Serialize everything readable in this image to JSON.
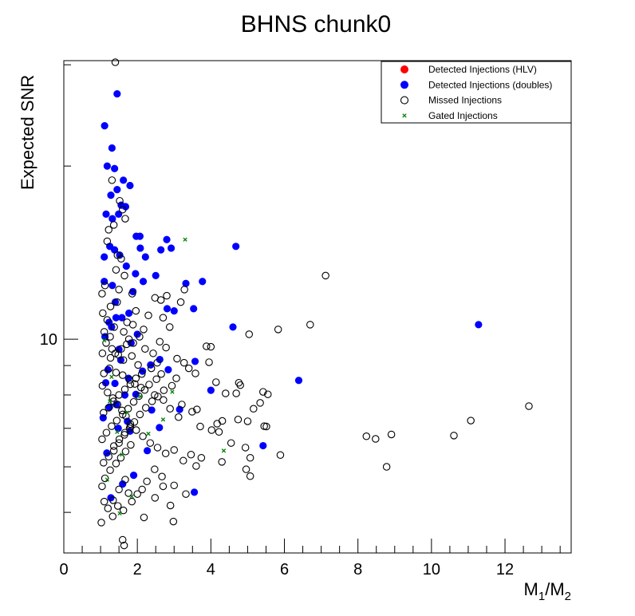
{
  "chart_data": {
    "type": "scatter",
    "title": "BHNS chunk0",
    "xlabel_main": "M",
    "xlabel_sub1": "1",
    "xlabel_sep": "/M",
    "xlabel_sub2": "2",
    "ylabel": "Expected SNR",
    "xlim": [
      0,
      13.8
    ],
    "ylim": [
      4.25,
      30.5
    ],
    "yscale": "log",
    "x_ticks": [
      "0",
      "2",
      "4",
      "6",
      "8",
      "10",
      "12"
    ],
    "y_ticks": [
      "10"
    ],
    "legend_position": "top-right",
    "legend": [
      {
        "label": "Detected Injections (HLV)",
        "marker": "filled-circle",
        "color": "#ff0000"
      },
      {
        "label": "Detected Injections (doubles)",
        "marker": "filled-circle",
        "color": "#0000ff"
      },
      {
        "label": "Missed Injections",
        "marker": "open-circle",
        "color": "#000000"
      },
      {
        "label": "Gated Injections",
        "marker": "x",
        "color": "#008000"
      }
    ],
    "series": [
      {
        "name": "Detected Injections (doubles)",
        "color": "#0000ff",
        "points": [
          [
            1.11,
            23.5
          ],
          [
            1.45,
            26.7
          ],
          [
            1.18,
            20.0
          ],
          [
            1.31,
            21.5
          ],
          [
            1.38,
            19.8
          ],
          [
            1.62,
            18.9
          ],
          [
            1.45,
            18.2
          ],
          [
            1.28,
            17.8
          ],
          [
            1.68,
            17.0
          ],
          [
            1.8,
            18.5
          ],
          [
            1.56,
            17.1
          ],
          [
            1.32,
            16.2
          ],
          [
            1.49,
            16.5
          ],
          [
            1.15,
            16.5
          ],
          [
            1.97,
            15.1
          ],
          [
            2.07,
            15.1
          ],
          [
            1.38,
            14.3
          ],
          [
            1.52,
            14.0
          ],
          [
            1.25,
            14.5
          ],
          [
            1.1,
            13.9
          ],
          [
            1.7,
            13.4
          ],
          [
            1.95,
            13.0
          ],
          [
            1.88,
            12.1
          ],
          [
            1.1,
            12.6
          ],
          [
            1.32,
            12.4
          ],
          [
            1.4,
            11.6
          ],
          [
            1.77,
            11.1
          ],
          [
            1.42,
            10.9
          ],
          [
            1.3,
            10.5
          ],
          [
            1.23,
            10.7
          ],
          [
            2.08,
            14.4
          ],
          [
            2.22,
            13.9
          ],
          [
            2.64,
            14.3
          ],
          [
            2.8,
            14.9
          ],
          [
            2.92,
            14.4
          ],
          [
            2.16,
            12.6
          ],
          [
            2.5,
            12.9
          ],
          [
            3.32,
            12.5
          ],
          [
            3.77,
            12.6
          ],
          [
            2.81,
            11.3
          ],
          [
            3.0,
            11.2
          ],
          [
            4.68,
            14.5
          ],
          [
            3.53,
            11.3
          ],
          [
            4.6,
            10.5
          ],
          [
            2.0,
            10.2
          ],
          [
            1.83,
            9.85
          ],
          [
            1.5,
            9.6
          ],
          [
            1.55,
            9.2
          ],
          [
            2.36,
            9.02
          ],
          [
            2.61,
            9.22
          ],
          [
            3.57,
            9.15
          ],
          [
            2.84,
            8.85
          ],
          [
            1.76,
            8.55
          ],
          [
            1.2,
            8.85
          ],
          [
            1.39,
            8.38
          ],
          [
            1.66,
            8.0
          ],
          [
            1.96,
            8.02
          ],
          [
            1.24,
            7.62
          ],
          [
            1.48,
            7.0
          ],
          [
            1.8,
            6.92
          ],
          [
            2.39,
            7.53
          ],
          [
            2.6,
            7.02
          ],
          [
            3.15,
            7.55
          ],
          [
            4.0,
            8.15
          ],
          [
            6.39,
            8.48
          ],
          [
            11.28,
            10.6
          ],
          [
            5.42,
            6.53
          ],
          [
            3.55,
            5.42
          ],
          [
            1.17,
            6.34
          ],
          [
            1.9,
            5.8
          ],
          [
            1.28,
            5.3
          ],
          [
            1.6,
            5.6
          ],
          [
            1.07,
            7.3
          ],
          [
            1.43,
            7.7
          ],
          [
            1.12,
            10.1
          ],
          [
            1.58,
            10.9
          ],
          [
            2.14,
            8.8
          ],
          [
            1.14,
            8.4
          ],
          [
            1.73,
            7.2
          ],
          [
            2.27,
            6.4
          ]
        ]
      },
      {
        "name": "Missed Injections",
        "color": "#000000",
        "points": [
          [
            1.4,
            30.3
          ],
          [
            1.31,
            18.9
          ],
          [
            1.52,
            17.4
          ],
          [
            1.6,
            16.8
          ],
          [
            1.67,
            16.2
          ],
          [
            1.36,
            15.8
          ],
          [
            1.22,
            15.5
          ],
          [
            1.18,
            14.8
          ],
          [
            1.46,
            14.0
          ],
          [
            1.56,
            13.8
          ],
          [
            1.42,
            13.2
          ],
          [
            1.65,
            12.9
          ],
          [
            1.5,
            12.2
          ],
          [
            1.86,
            12.0
          ],
          [
            2.48,
            11.8
          ],
          [
            2.64,
            11.7
          ],
          [
            2.8,
            11.9
          ],
          [
            2.3,
            11.0
          ],
          [
            2.7,
            10.9
          ],
          [
            3.18,
            11.6
          ],
          [
            3.28,
            12.2
          ],
          [
            1.96,
            11.2
          ],
          [
            1.72,
            10.7
          ],
          [
            2.17,
            10.4
          ],
          [
            2.06,
            10.1
          ],
          [
            2.61,
            9.9
          ],
          [
            2.88,
            10.5
          ],
          [
            1.1,
            10.3
          ],
          [
            1.26,
            10.1
          ],
          [
            1.15,
            9.85
          ],
          [
            1.05,
            9.45
          ],
          [
            1.31,
            9.62
          ],
          [
            1.48,
            9.4
          ],
          [
            1.62,
            9.2
          ],
          [
            1.85,
            9.35
          ],
          [
            2.21,
            9.62
          ],
          [
            2.43,
            9.45
          ],
          [
            2.78,
            9.67
          ],
          [
            3.08,
            9.25
          ],
          [
            3.27,
            9.1
          ],
          [
            3.4,
            8.9
          ],
          [
            3.58,
            8.72
          ],
          [
            3.88,
            9.72
          ],
          [
            4.0,
            9.7
          ],
          [
            3.95,
            9.12
          ],
          [
            4.14,
            8.42
          ],
          [
            4.4,
            8.05
          ],
          [
            4.76,
            8.4
          ],
          [
            4.8,
            8.32
          ],
          [
            4.69,
            8.05
          ],
          [
            5.04,
            10.2
          ],
          [
            5.83,
            10.4
          ],
          [
            6.7,
            10.6
          ],
          [
            7.12,
            12.9
          ],
          [
            5.34,
            7.75
          ],
          [
            5.42,
            8.1
          ],
          [
            5.55,
            8.02
          ],
          [
            5.16,
            7.57
          ],
          [
            5.0,
            7.2
          ],
          [
            5.45,
            7.06
          ],
          [
            5.51,
            7.05
          ],
          [
            4.74,
            7.25
          ],
          [
            4.31,
            7.21
          ],
          [
            4.17,
            7.13
          ],
          [
            4.22,
            6.9
          ],
          [
            4.02,
            6.95
          ],
          [
            3.71,
            7.05
          ],
          [
            3.49,
            7.48
          ],
          [
            3.62,
            7.55
          ],
          [
            3.21,
            7.7
          ],
          [
            3.12,
            7.32
          ],
          [
            2.89,
            7.57
          ],
          [
            2.71,
            7.84
          ],
          [
            2.47,
            8.0
          ],
          [
            2.1,
            8.24
          ],
          [
            1.93,
            8.36
          ],
          [
            1.79,
            8.5
          ],
          [
            1.6,
            8.66
          ],
          [
            1.42,
            8.75
          ],
          [
            1.24,
            8.9
          ],
          [
            1.09,
            8.72
          ],
          [
            1.05,
            8.3
          ],
          [
            1.19,
            8.08
          ],
          [
            1.33,
            7.9
          ],
          [
            1.46,
            7.7
          ],
          [
            1.58,
            7.52
          ],
          [
            1.69,
            7.35
          ],
          [
            1.81,
            7.12
          ],
          [
            1.97,
            6.95
          ],
          [
            2.15,
            6.78
          ],
          [
            2.35,
            6.6
          ],
          [
            2.55,
            6.48
          ],
          [
            2.77,
            6.33
          ],
          [
            3.0,
            6.42
          ],
          [
            3.25,
            6.15
          ],
          [
            3.46,
            6.3
          ],
          [
            3.6,
            6.02
          ],
          [
            3.74,
            6.22
          ],
          [
            4.3,
            6.12
          ],
          [
            4.55,
            6.6
          ],
          [
            4.94,
            6.48
          ],
          [
            5.07,
            6.22
          ],
          [
            5.89,
            6.29
          ],
          [
            8.23,
            6.78
          ],
          [
            8.48,
            6.71
          ],
          [
            8.91,
            6.83
          ],
          [
            10.61,
            6.8
          ],
          [
            11.07,
            7.22
          ],
          [
            12.65,
            7.65
          ],
          [
            8.78,
            6.0
          ],
          [
            5.07,
            5.78
          ],
          [
            4.96,
            5.94
          ],
          [
            3.32,
            5.38
          ],
          [
            3.0,
            5.57
          ],
          [
            2.9,
            5.14
          ],
          [
            2.67,
            5.77
          ],
          [
            2.47,
            5.94
          ],
          [
            2.26,
            5.66
          ],
          [
            2.13,
            5.48
          ],
          [
            2.0,
            5.38
          ],
          [
            1.85,
            5.22
          ],
          [
            1.76,
            5.4
          ],
          [
            1.62,
            5.04
          ],
          [
            1.47,
            5.13
          ],
          [
            1.33,
            4.92
          ],
          [
            1.2,
            5.08
          ],
          [
            1.1,
            5.22
          ],
          [
            1.04,
            5.55
          ],
          [
            1.12,
            5.73
          ],
          [
            1.26,
            5.92
          ],
          [
            1.42,
            6.08
          ],
          [
            1.55,
            6.22
          ],
          [
            1.68,
            6.38
          ],
          [
            1.82,
            6.55
          ],
          [
            1.04,
            6.7
          ],
          [
            1.16,
            6.88
          ],
          [
            1.3,
            7.06
          ],
          [
            1.44,
            7.22
          ],
          [
            1.6,
            7.4
          ],
          [
            1.75,
            7.57
          ],
          [
            1.9,
            7.78
          ],
          [
            2.04,
            7.96
          ],
          [
            2.2,
            8.16
          ],
          [
            2.32,
            8.34
          ],
          [
            2.52,
            8.52
          ],
          [
            2.65,
            8.7
          ],
          [
            2.38,
            8.9
          ],
          [
            2.54,
            9.1
          ],
          [
            2.02,
            9.02
          ],
          [
            1.89,
            9.85
          ],
          [
            1.77,
            10.0
          ],
          [
            1.63,
            10.3
          ],
          [
            1.37,
            10.5
          ],
          [
            1.18,
            10.8
          ],
          [
            1.06,
            11.1
          ],
          [
            1.27,
            11.4
          ],
          [
            1.45,
            11.6
          ],
          [
            1.04,
            12.0
          ],
          [
            1.12,
            12.4
          ],
          [
            1.02,
            4.8
          ],
          [
            1.6,
            4.48
          ],
          [
            1.64,
            4.38
          ],
          [
            2.98,
            4.82
          ],
          [
            2.18,
            4.9
          ],
          [
            1.36,
            6.4
          ],
          [
            1.5,
            6.6
          ],
          [
            1.65,
            6.82
          ],
          [
            1.79,
            7.0
          ],
          [
            1.92,
            7.18
          ],
          [
            2.07,
            7.4
          ],
          [
            2.23,
            7.6
          ],
          [
            2.4,
            7.8
          ],
          [
            2.56,
            7.95
          ],
          [
            2.72,
            8.15
          ],
          [
            2.94,
            8.3
          ],
          [
            3.06,
            8.55
          ],
          [
            1.08,
            7.45
          ],
          [
            1.22,
            7.6
          ],
          [
            1.35,
            7.8
          ],
          [
            1.5,
            8.0
          ],
          [
            1.66,
            8.18
          ],
          [
            1.81,
            8.35
          ],
          [
            1.96,
            8.55
          ],
          [
            2.12,
            8.7
          ],
          [
            1.27,
            9.28
          ],
          [
            1.4,
            9.45
          ],
          [
            1.56,
            9.62
          ],
          [
            1.71,
            9.8
          ],
          [
            1.88,
            10.6
          ],
          [
            1.08,
            6.1
          ],
          [
            1.22,
            6.25
          ],
          [
            1.36,
            6.52
          ],
          [
            1.51,
            6.7
          ],
          [
            1.66,
            6.88
          ],
          [
            1.81,
            7.05
          ],
          [
            2.48,
            5.3
          ],
          [
            2.7,
            5.55
          ],
          [
            1.34,
            5.25
          ],
          [
            1.5,
            5.48
          ],
          [
            1.67,
            5.7
          ]
        ]
      },
      {
        "name": "Gated Injections",
        "color": "#008000",
        "points": [
          [
            3.3,
            14.9
          ],
          [
            4.35,
            6.4
          ],
          [
            1.52,
            4.98
          ],
          [
            1.85,
            5.33
          ],
          [
            1.18,
            5.7
          ],
          [
            1.45,
            6.9
          ],
          [
            1.72,
            7.45
          ],
          [
            2.08,
            7.95
          ],
          [
            2.95,
            8.1
          ],
          [
            1.3,
            8.6
          ],
          [
            1.1,
            9.95
          ],
          [
            1.58,
            6.3
          ],
          [
            2.3,
            6.85
          ],
          [
            1.25,
            7.8
          ],
          [
            2.7,
            7.25
          ]
        ]
      }
    ]
  }
}
